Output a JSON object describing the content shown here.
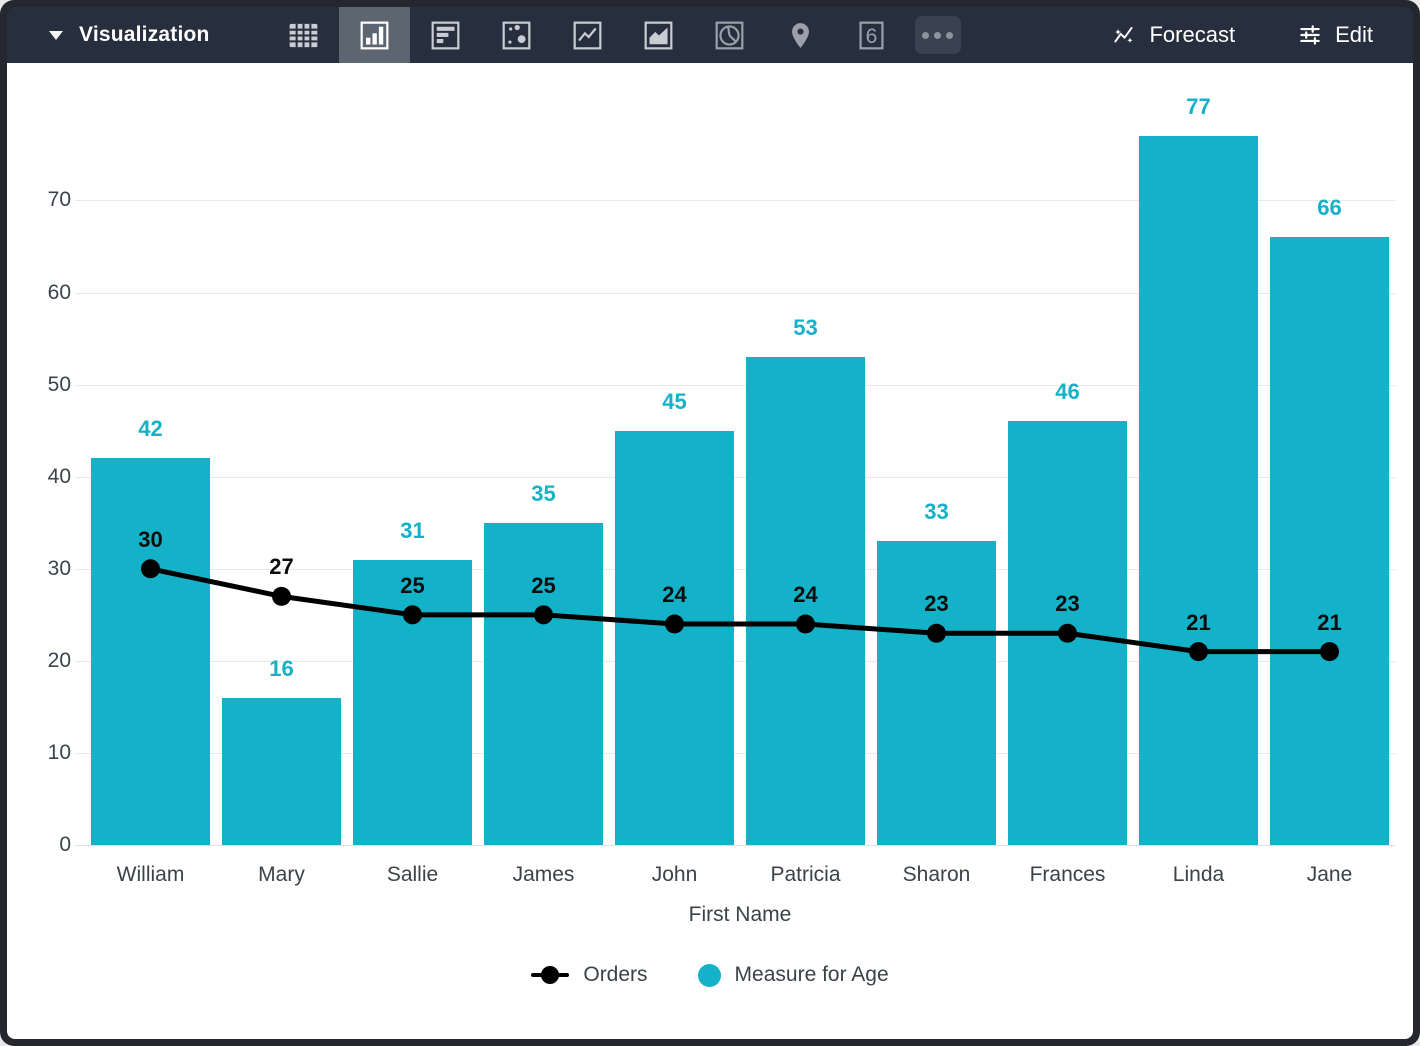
{
  "toolbar": {
    "title": "Visualization",
    "chart_types": [
      {
        "name": "table",
        "selected": false
      },
      {
        "name": "column",
        "selected": true
      },
      {
        "name": "bar",
        "selected": false
      },
      {
        "name": "scatter",
        "selected": false
      },
      {
        "name": "line",
        "selected": false
      },
      {
        "name": "area",
        "selected": false
      },
      {
        "name": "pie",
        "selected": false
      },
      {
        "name": "map",
        "selected": false
      },
      {
        "name": "single-value",
        "selected": false,
        "glyph": "6"
      },
      {
        "name": "more",
        "selected": false
      }
    ],
    "forecast_label": "Forecast",
    "edit_label": "Edit"
  },
  "chart_data": {
    "type": "combo",
    "categories": [
      "William",
      "Mary",
      "Sallie",
      "James",
      "John",
      "Patricia",
      "Sharon",
      "Frances",
      "Linda",
      "Jane"
    ],
    "series": [
      {
        "name": "Orders",
        "type": "line",
        "color": "#000000",
        "values": [
          30,
          27,
          25,
          25,
          24,
          24,
          23,
          23,
          21,
          21
        ]
      },
      {
        "name": "Measure for Age",
        "type": "bar",
        "color": "#14b2c9",
        "values": [
          42,
          16,
          31,
          35,
          45,
          53,
          33,
          46,
          77,
          66
        ]
      }
    ],
    "xlabel": "First Name",
    "ylabel": "",
    "yticks": [
      0,
      10,
      20,
      30,
      40,
      50,
      60,
      70
    ],
    "ylim": [
      0,
      82
    ],
    "grid": true,
    "legend_position": "bottom"
  },
  "colors": {
    "accent_teal": "#14b2c9",
    "line_black": "#000000",
    "toolbar_bg": "#272e3d",
    "selected_button_bg": "#5d6571",
    "frame": "#24282e",
    "gridline": "#e8e9ea",
    "axis_text": "#3c4248"
  }
}
